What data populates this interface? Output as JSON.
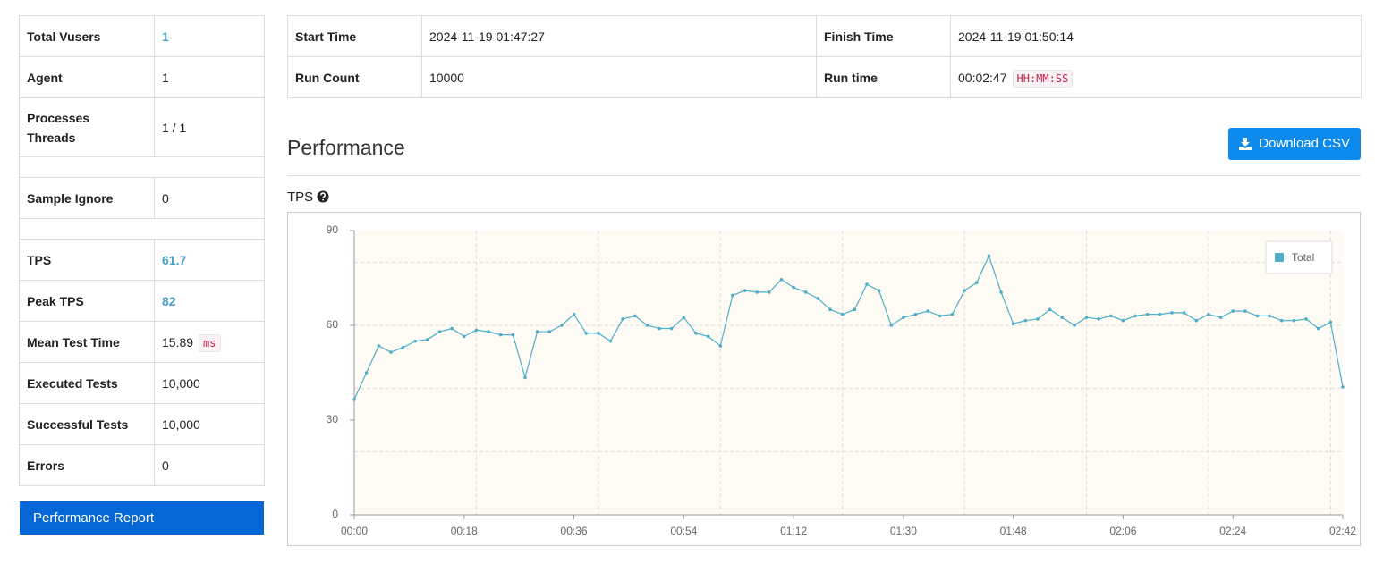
{
  "summary": {
    "rows": [
      {
        "label": "Total Vusers",
        "value": "1"
      },
      {
        "label": "Agent",
        "value": "1"
      },
      {
        "label": [
          "Processes",
          "Threads"
        ],
        "value": "1 / 1"
      },
      {
        "label": "Sample Ignore",
        "value": "0"
      },
      {
        "label": "TPS",
        "value": "61.7"
      },
      {
        "label": "Peak TPS",
        "value": "82"
      },
      {
        "label": "Mean Test Time",
        "value": "15.89",
        "unit": "ms"
      },
      {
        "label": "Executed Tests",
        "value": "10,000"
      },
      {
        "label": "Successful Tests",
        "value": "10,000"
      },
      {
        "label": "Errors",
        "value": "0"
      }
    ],
    "report_button": "Performance Report"
  },
  "run_info": {
    "rows": [
      [
        {
          "label": "Start Time",
          "value": "2024-11-19 01:47:27"
        },
        {
          "label": "Finish Time",
          "value": "2024-11-19 01:50:14"
        }
      ],
      [
        {
          "label": "Run Count",
          "value": "10000"
        },
        {
          "label": "Run time",
          "value": "00:02:47",
          "unit": "HH:MM:SS"
        }
      ]
    ]
  },
  "section_title": "Performance",
  "download_button": "Download CSV",
  "chart_data": {
    "type": "line",
    "title": "TPS",
    "x": [
      0,
      2,
      4,
      6,
      8,
      10,
      12,
      14,
      16,
      18,
      20,
      22,
      24,
      26,
      28,
      30,
      32,
      34,
      36,
      38,
      40,
      42,
      44,
      46,
      48,
      50,
      52,
      54,
      56,
      58,
      60,
      62,
      64,
      66,
      68,
      70,
      72,
      74,
      76,
      78,
      80,
      82,
      84,
      86,
      88,
      90,
      92,
      94,
      96,
      98,
      100,
      102,
      104,
      106,
      108,
      110,
      112,
      114,
      116,
      118,
      120,
      122,
      124,
      126,
      128,
      130,
      132,
      134,
      136,
      138,
      140,
      142,
      144,
      146,
      148,
      150,
      152,
      154,
      156,
      158,
      160,
      162
    ],
    "series": [
      {
        "name": "Total",
        "color": "#4eaec9",
        "values": [
          36.5,
          45,
          53.5,
          51.5,
          53,
          55,
          55.5,
          58,
          59,
          56.5,
          58.5,
          58,
          57,
          57,
          43.5,
          58,
          58,
          60,
          63.5,
          57.5,
          57.5,
          55,
          62,
          63,
          60,
          59,
          59,
          62.5,
          57.5,
          56.5,
          53.5,
          69.5,
          71,
          70.5,
          70.5,
          74.5,
          72,
          70.5,
          68.5,
          65,
          63.5,
          65,
          73,
          71,
          60,
          62.5,
          63.5,
          64.5,
          63,
          63.5,
          71,
          73.5,
          82,
          70.5,
          60.5,
          61.5,
          62,
          65,
          62.5,
          60,
          62.5,
          62,
          63,
          61.5,
          63,
          63.5,
          63.5,
          64,
          64,
          61.5,
          63.5,
          62.5,
          64.5,
          64.5,
          63,
          63,
          61.5,
          61.5,
          62,
          59,
          61,
          40.5
        ]
      }
    ],
    "xlim": [
      0,
      162
    ],
    "xticks": [
      {
        "value": 0,
        "label": "00:00"
      },
      {
        "value": 18,
        "label": "00:18"
      },
      {
        "value": 36,
        "label": "00:36"
      },
      {
        "value": 54,
        "label": "00:54"
      },
      {
        "value": 72,
        "label": "01:12"
      },
      {
        "value": 90,
        "label": "01:30"
      },
      {
        "value": 108,
        "label": "01:48"
      },
      {
        "value": 126,
        "label": "02:06"
      },
      {
        "value": 144,
        "label": "02:24"
      },
      {
        "value": 162,
        "label": "02:42"
      }
    ],
    "xgrid": [
      20,
      40,
      60,
      80,
      100,
      120,
      140,
      160
    ],
    "ylim": [
      0,
      90
    ],
    "yticks": [
      0,
      30,
      60,
      90
    ],
    "ygrid": [
      20,
      40,
      60,
      80
    ],
    "legend": "top-right"
  }
}
